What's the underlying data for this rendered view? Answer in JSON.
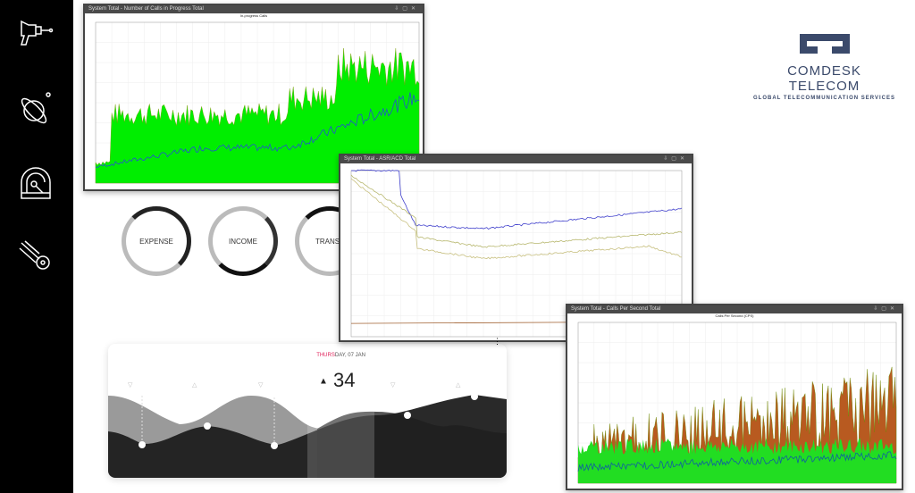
{
  "sidebar": {
    "icons": [
      "ray-gun-icon",
      "planet-icon",
      "astronaut-helmet-icon",
      "comet-icon"
    ]
  },
  "windows": [
    {
      "title": "System Total - Number of Calls in Progress Total",
      "chart_title": "In-progress Calls"
    },
    {
      "title": "System Total - ASR/ACD Total"
    },
    {
      "title": "System Total - Calls Per Second Total",
      "chart_title": "Calls Per Second (CPS)"
    }
  ],
  "logo": {
    "name": "COMDESK TELECOM",
    "tagline": "GLOBAL TELECOMMUNICATION SERVICES",
    "color": "#3b4a6b"
  },
  "donuts": [
    "EXPENSE",
    "INCOME",
    "TRANSF"
  ],
  "weather": {
    "day_highlight": "THURS",
    "date_rest": "DAY, 07 JAN",
    "temperature": "34",
    "accent": "#e0225a"
  }
}
